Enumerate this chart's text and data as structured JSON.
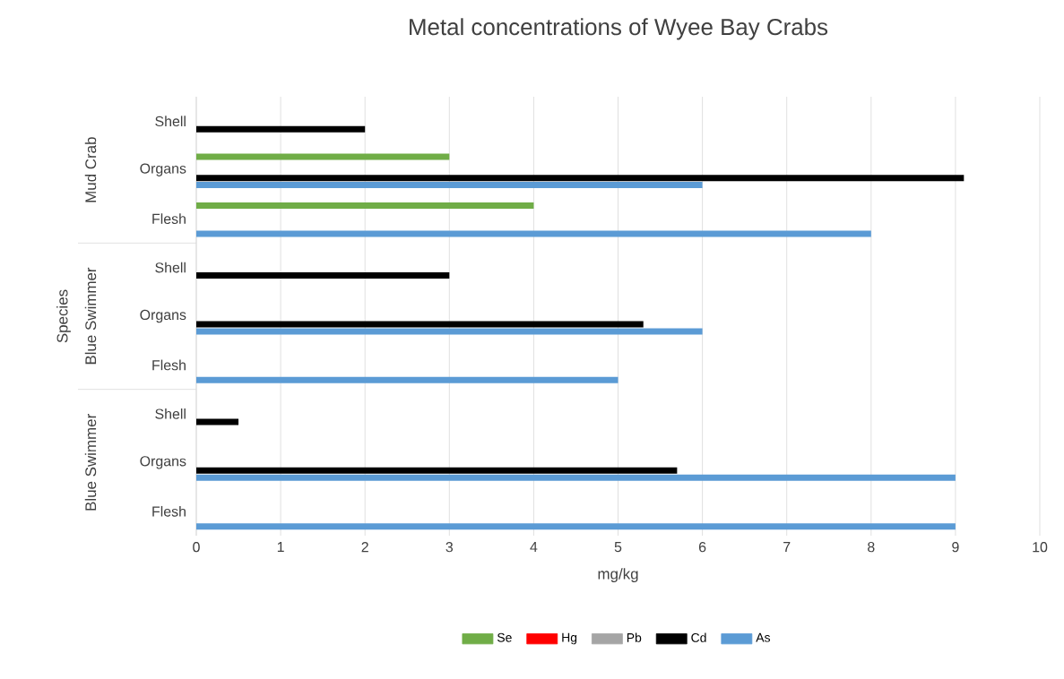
{
  "chart_data": {
    "type": "bar",
    "orientation": "horizontal",
    "title": "Metal concentrations of Wyee Bay Crabs",
    "xlabel": "mg/kg",
    "ylabel": "Species",
    "categories": [
      "Shell",
      "Organs",
      "Flesh",
      "Shell",
      "Organs",
      "Flesh",
      "Shell",
      "Organs",
      "Flesh"
    ],
    "annotations": [
      "Mud Crab",
      "Blue Swimmer",
      "Blue Swimmer"
    ],
    "series": [
      {
        "name": "Se",
        "color": "#70ad47",
        "values": [
          null,
          3,
          4,
          null,
          null,
          null,
          null,
          null,
          null
        ]
      },
      {
        "name": "Hg",
        "color": "#ff0000",
        "values": [
          null,
          null,
          null,
          null,
          null,
          null,
          null,
          null,
          null
        ]
      },
      {
        "name": "Pb",
        "color": "#a5a5a5",
        "values": [
          null,
          null,
          null,
          null,
          null,
          null,
          null,
          null,
          null
        ]
      },
      {
        "name": "Cd",
        "color": "#000000",
        "values": [
          2,
          9.1,
          null,
          3,
          5.3,
          null,
          0.5,
          5.7,
          null
        ]
      },
      {
        "name": "As",
        "color": "#5b9bd5",
        "values": [
          null,
          6,
          8,
          null,
          6,
          5,
          null,
          9,
          9
        ]
      }
    ],
    "xlim": [
      0,
      10
    ],
    "xticks": [
      0,
      1,
      2,
      3,
      4,
      5,
      6,
      7,
      8,
      9,
      10
    ],
    "grid": "x",
    "legend": "bottom"
  }
}
